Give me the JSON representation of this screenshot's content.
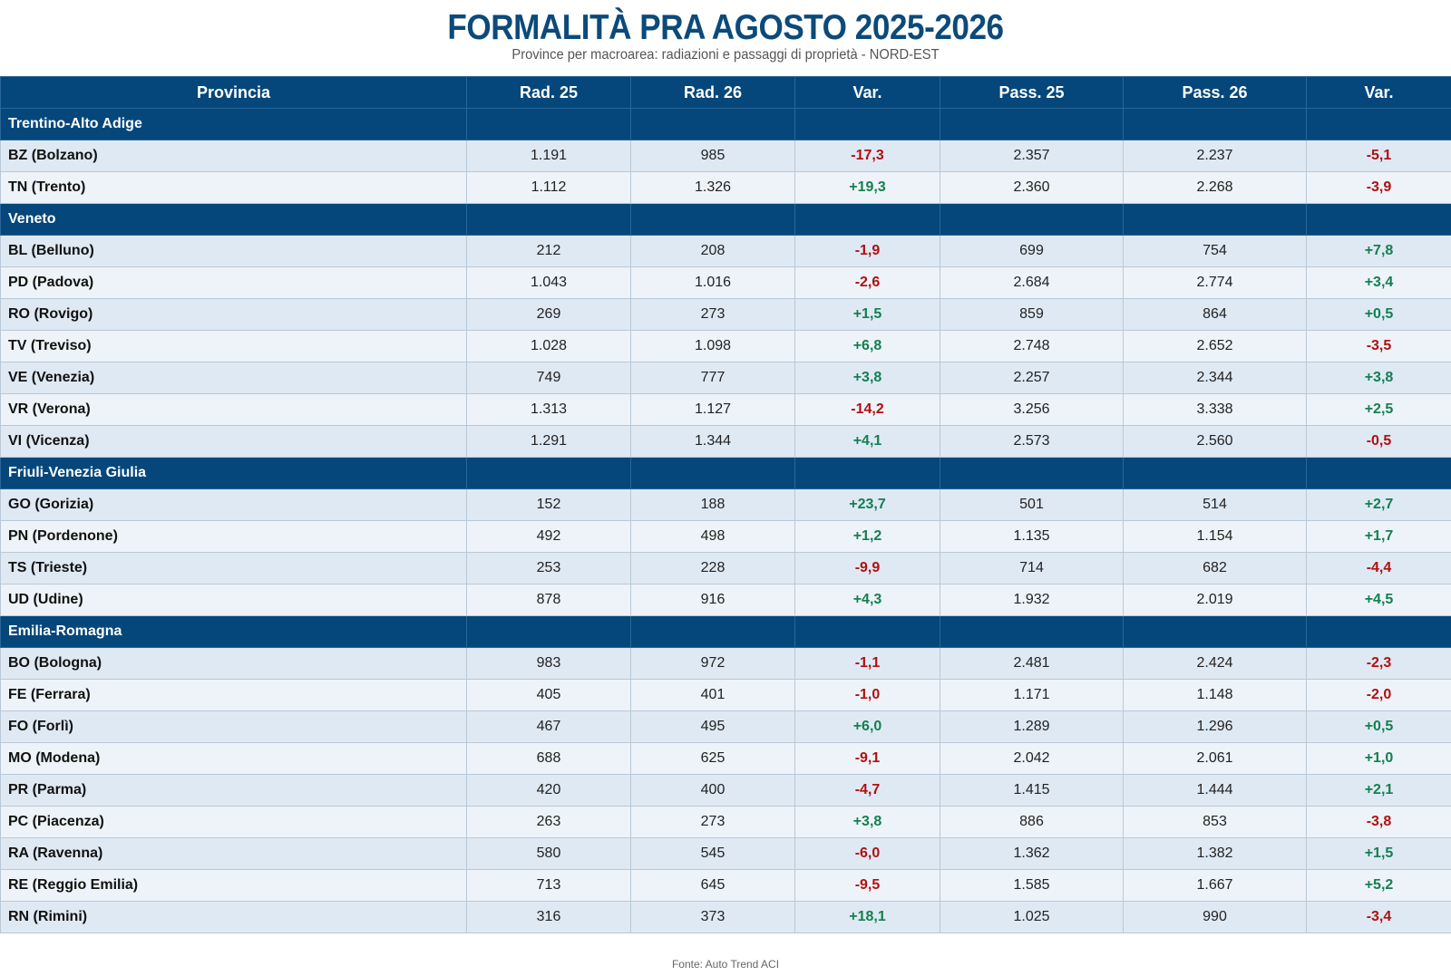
{
  "title": "FORMALITÀ PRA AGOSTO 2025-2026",
  "subtitle": "Province per macroarea: radiazioni e passaggi di proprietà - NORD-EST",
  "columns": [
    "Provincia",
    "Rad. 25",
    "Rad. 26",
    "Var.",
    "Pass. 25",
    "Pass. 26",
    "Var."
  ],
  "colors": {
    "header_bg": "#05477a",
    "negative": "#b01010",
    "positive": "#138050"
  },
  "groups": [
    {
      "name": "Trentino-Alto Adige",
      "rows": [
        [
          "BZ (Bolzano)",
          "1.191",
          "985",
          "-17,3",
          "2.357",
          "2.237",
          "-5,1"
        ],
        [
          "TN (Trento)",
          "1.112",
          "1.326",
          "+19,3",
          "2.360",
          "2.268",
          "-3,9"
        ]
      ]
    },
    {
      "name": "Veneto",
      "rows": [
        [
          "BL (Belluno)",
          "212",
          "208",
          "-1,9",
          "699",
          "754",
          "+7,8"
        ],
        [
          "PD (Padova)",
          "1.043",
          "1.016",
          "-2,6",
          "2.684",
          "2.774",
          "+3,4"
        ],
        [
          "RO (Rovigo)",
          "269",
          "273",
          "+1,5",
          "859",
          "864",
          "+0,5"
        ],
        [
          "TV (Treviso)",
          "1.028",
          "1.098",
          "+6,8",
          "2.748",
          "2.652",
          "-3,5"
        ],
        [
          "VE (Venezia)",
          "749",
          "777",
          "+3,8",
          "2.257",
          "2.344",
          "+3,8"
        ],
        [
          "VR (Verona)",
          "1.313",
          "1.127",
          "-14,2",
          "3.256",
          "3.338",
          "+2,5"
        ],
        [
          "VI (Vicenza)",
          "1.291",
          "1.344",
          "+4,1",
          "2.573",
          "2.560",
          "-0,5"
        ]
      ]
    },
    {
      "name": "Friuli-Venezia Giulia",
      "rows": [
        [
          "GO (Gorizia)",
          "152",
          "188",
          "+23,7",
          "501",
          "514",
          "+2,7"
        ],
        [
          "PN (Pordenone)",
          "492",
          "498",
          "+1,2",
          "1.135",
          "1.154",
          "+1,7"
        ],
        [
          "TS (Trieste)",
          "253",
          "228",
          "-9,9",
          "714",
          "682",
          "-4,4"
        ],
        [
          "UD (Udine)",
          "878",
          "916",
          "+4,3",
          "1.932",
          "2.019",
          "+4,5"
        ]
      ]
    },
    {
      "name": "Emilia-Romagna",
      "rows": [
        [
          "BO (Bologna)",
          "983",
          "972",
          "-1,1",
          "2.481",
          "2.424",
          "-2,3"
        ],
        [
          "FE (Ferrara)",
          "405",
          "401",
          "-1,0",
          "1.171",
          "1.148",
          "-2,0"
        ],
        [
          "FO (Forlì)",
          "467",
          "495",
          "+6,0",
          "1.289",
          "1.296",
          "+0,5"
        ],
        [
          "MO (Modena)",
          "688",
          "625",
          "-9,1",
          "2.042",
          "2.061",
          "+1,0"
        ],
        [
          "PR (Parma)",
          "420",
          "400",
          "-4,7",
          "1.415",
          "1.444",
          "+2,1"
        ],
        [
          "PC (Piacenza)",
          "263",
          "273",
          "+3,8",
          "886",
          "853",
          "-3,8"
        ],
        [
          "RA (Ravenna)",
          "580",
          "545",
          "-6,0",
          "1.362",
          "1.382",
          "+1,5"
        ],
        [
          "RE (Reggio Emilia)",
          "713",
          "645",
          "-9,5",
          "1.585",
          "1.667",
          "+5,2"
        ],
        [
          "RN (Rimini)",
          "316",
          "373",
          "+18,1",
          "1.025",
          "990",
          "-3,4"
        ]
      ]
    }
  ],
  "footer": "Fonte: Auto Trend ACI"
}
